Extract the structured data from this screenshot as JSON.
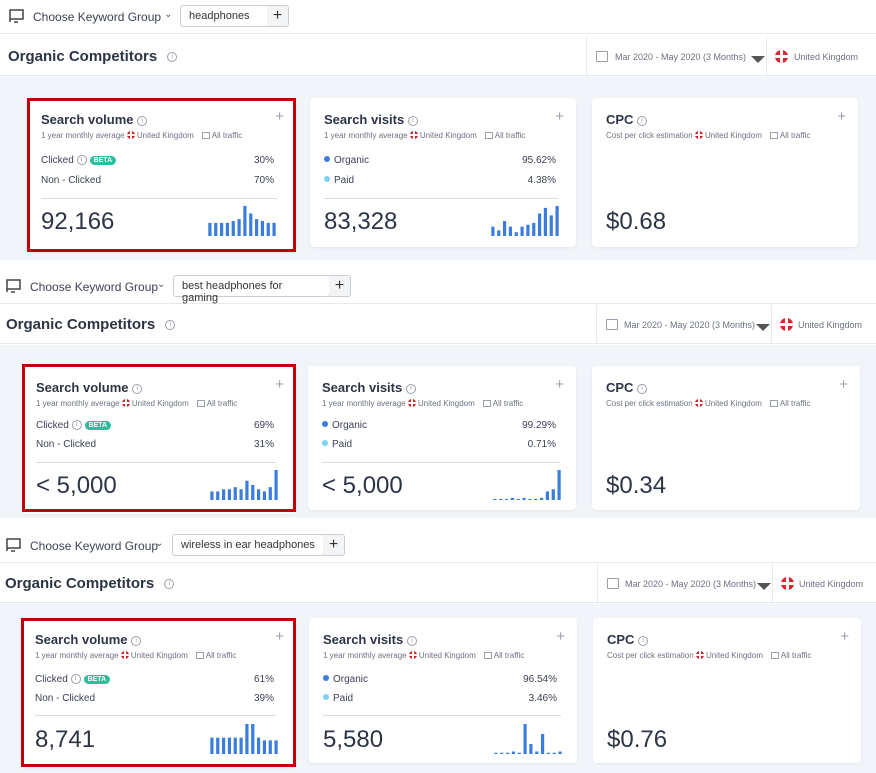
{
  "colors": {
    "bar": "#3b7ddd",
    "organic": "#3b7ddd",
    "paid": "#7fd0f5",
    "highlight": "#c0000b",
    "beta": "#2dbf9a"
  },
  "sections": [
    {
      "keyword_group_label": "Choose Keyword Group",
      "keyword": "headphones",
      "title": "Organic Competitors",
      "date_range": "Mar 2020 - May 2020 (3 Months)",
      "country": "United Kingdom",
      "search_volume": {
        "title": "Search volume",
        "sub_avg": "1 year monthly average",
        "sub_country": "United Kingdom",
        "sub_traffic": "All traffic",
        "clicked_label": "Clicked",
        "beta": "BETA",
        "clicked_pct": "30%",
        "nonclicked_label": "Non - Clicked",
        "nonclicked_pct": "70%",
        "value": "92,166",
        "bars": [
          7,
          7,
          7,
          7,
          8,
          9,
          16,
          12,
          9,
          8,
          7,
          7
        ]
      },
      "search_visits": {
        "title": "Search visits",
        "sub_avg": "1 year monthly average",
        "sub_country": "United Kingdom",
        "sub_traffic": "All traffic",
        "organic_label": "Organic",
        "organic_pct": "95.62%",
        "paid_label": "Paid",
        "paid_pct": "4.38%",
        "value": "83,328",
        "bars": [
          5,
          3,
          8,
          5,
          2,
          5,
          6,
          7,
          12,
          15,
          11,
          16
        ]
      },
      "cpc": {
        "title": "CPC",
        "sub_est": "Cost per click estimation",
        "sub_country": "United Kingdom",
        "sub_traffic": "All traffic",
        "value": "$0.68"
      }
    },
    {
      "keyword_group_label": "Choose Keyword Group",
      "keyword": "best headphones for gaming",
      "title": "Organic Competitors",
      "date_range": "Mar 2020 - May 2020 (3 Months)",
      "country": "United Kingdom",
      "search_volume": {
        "title": "Search volume",
        "sub_avg": "1 year monthly average",
        "sub_country": "United Kingdom",
        "sub_traffic": "All traffic",
        "clicked_label": "Clicked",
        "beta": "BETA",
        "clicked_pct": "69%",
        "nonclicked_label": "Non - Clicked",
        "nonclicked_pct": "31%",
        "value": "< 5,000",
        "bars": [
          4,
          4,
          5,
          5,
          6,
          5,
          9,
          7,
          5,
          4,
          6,
          14
        ]
      },
      "search_visits": {
        "title": "Search visits",
        "sub_avg": "1 year monthly average",
        "sub_country": "United Kingdom",
        "sub_traffic": "All traffic",
        "organic_label": "Organic",
        "organic_pct": "99.29%",
        "paid_label": "Paid",
        "paid_pct": "0.71%",
        "value": "< 5,000",
        "bars": [
          0.5,
          0.5,
          0.5,
          1,
          0.5,
          1,
          0.5,
          0.5,
          1,
          4,
          5,
          14
        ]
      },
      "cpc": {
        "title": "CPC",
        "sub_est": "Cost per click estimation",
        "sub_country": "United Kingdom",
        "sub_traffic": "All traffic",
        "value": "$0.34"
      }
    },
    {
      "keyword_group_label": "Choose Keyword Group",
      "keyword": "wireless in ear headphones",
      "title": "Organic Competitors",
      "date_range": "Mar 2020 - May 2020 (3 Months)",
      "country": "United Kingdom",
      "search_volume": {
        "title": "Search volume",
        "sub_avg": "1 year monthly average",
        "sub_country": "United Kingdom",
        "sub_traffic": "All traffic",
        "clicked_label": "Clicked",
        "beta": "BETA",
        "clicked_pct": "61%",
        "nonclicked_label": "Non - Clicked",
        "nonclicked_pct": "39%",
        "value": "8,741",
        "bars": [
          6,
          6,
          6,
          6,
          6,
          6,
          11,
          11,
          6,
          5,
          5,
          5
        ]
      },
      "search_visits": {
        "title": "Search visits",
        "sub_avg": "1 year monthly average",
        "sub_country": "United Kingdom",
        "sub_traffic": "All traffic",
        "organic_label": "Organic",
        "organic_pct": "96.54%",
        "paid_label": "Paid",
        "paid_pct": "3.46%",
        "value": "5,580",
        "bars": [
          0.5,
          0.5,
          0.5,
          1,
          0.5,
          12,
          4,
          1,
          8,
          0.5,
          0.5,
          1
        ]
      },
      "cpc": {
        "title": "CPC",
        "sub_est": "Cost per click estimation",
        "sub_country": "United Kingdom",
        "sub_traffic": "All traffic",
        "value": "$0.76"
      }
    }
  ]
}
